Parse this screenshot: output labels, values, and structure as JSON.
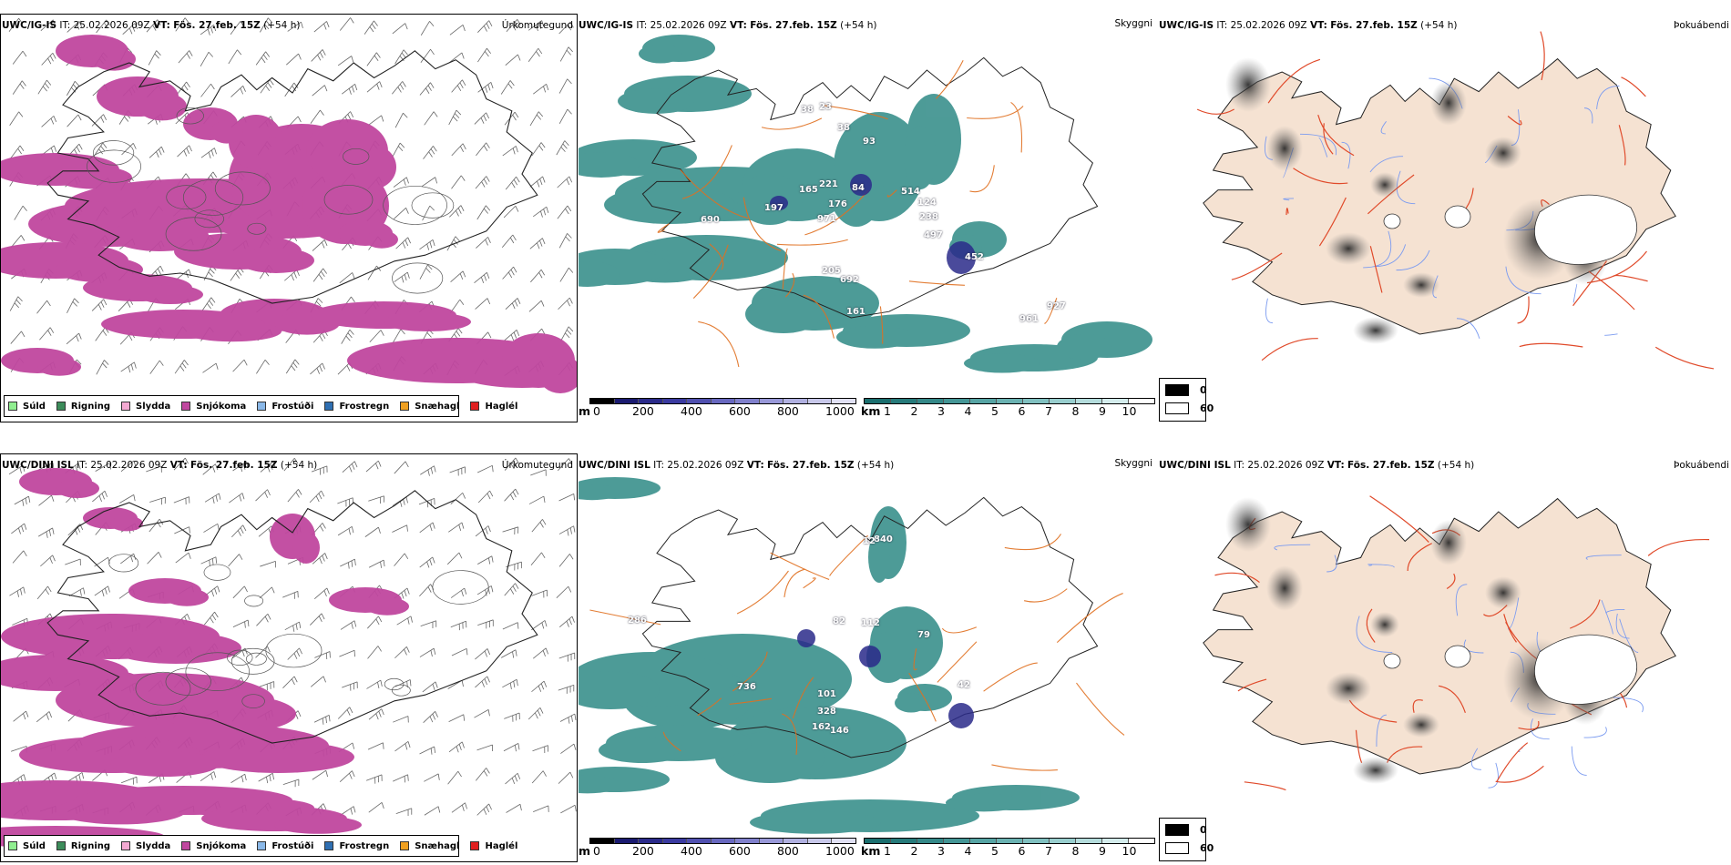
{
  "rows": [
    {
      "model": "UWC/IG-IS",
      "it_label": "IT:",
      "it_value": "25.02.2026 09Z",
      "vt_label": "VT:",
      "vt_value": "Fös. 27.feb. 15Z",
      "lead": "(+54 h)",
      "panel_titles": [
        "Úrkomutegund",
        "Skyggni",
        "Þokuábendi"
      ],
      "peaks": [
        {
          "label": "38"
        },
        {
          "label": "23"
        },
        {
          "label": "38"
        },
        {
          "label": "93"
        },
        {
          "label": "221"
        },
        {
          "label": "165"
        },
        {
          "label": "84"
        },
        {
          "label": "514"
        },
        {
          "label": "176"
        },
        {
          "label": "124"
        },
        {
          "label": "197"
        },
        {
          "label": "971"
        },
        {
          "label": "238"
        },
        {
          "label": "690"
        },
        {
          "label": "497"
        },
        {
          "label": "452"
        },
        {
          "label": "205"
        },
        {
          "label": "692"
        },
        {
          "label": "161"
        },
        {
          "label": "961"
        },
        {
          "label": "927"
        }
      ]
    },
    {
      "model": "UWC/DINI ISL",
      "it_label": "IT:",
      "it_value": "25.02.2026 09Z",
      "vt_label": "VT:",
      "vt_value": "Fös. 27.feb. 15Z",
      "lead": "(+54 h)",
      "panel_titles": [
        "Úrkomutegund",
        "Skyggni",
        "Þokuábendi"
      ],
      "peaks": [
        {
          "label": "840"
        },
        {
          "label": "12"
        },
        {
          "label": "286"
        },
        {
          "label": "112"
        },
        {
          "label": "82"
        },
        {
          "label": "79"
        },
        {
          "label": "42"
        },
        {
          "label": "736"
        },
        {
          "label": "101"
        },
        {
          "label": "328"
        },
        {
          "label": "162"
        },
        {
          "label": "146"
        }
      ]
    }
  ],
  "precip_legend": [
    {
      "label": "Súld",
      "color": "#90ee90"
    },
    {
      "label": "Rigning",
      "color": "#3c8c5a"
    },
    {
      "label": "Slydda",
      "color": "#f4a9d2"
    },
    {
      "label": "Snjókoma",
      "color": "#c0479f"
    },
    {
      "label": "Frostúði",
      "color": "#8ab8e8"
    },
    {
      "label": "Frostregn",
      "color": "#2f6fb2"
    },
    {
      "label": "Snæhagl",
      "color": "#f0a020"
    },
    {
      "label": "Haglél",
      "color": "#e02020"
    }
  ],
  "visibility_scale": {
    "height_unit": "m",
    "height_ticks": [
      "0",
      "200",
      "400",
      "600",
      "800",
      "1000"
    ],
    "height_colors": [
      "#000000",
      "#1a1a70",
      "#2a2a8a",
      "#3a3aa0",
      "#5050b0",
      "#6868bf",
      "#8080cc",
      "#9898d8",
      "#b0b0e0",
      "#c8c8ea",
      "#e0e0f4"
    ],
    "vis_unit": "km",
    "vis_ticks": [
      "1",
      "2",
      "3",
      "4",
      "5",
      "6",
      "7",
      "8",
      "9",
      "10"
    ],
    "vis_colors": [
      "#1a6e6e",
      "#267a7a",
      "#348888",
      "#449696",
      "#56a4a4",
      "#6ab2b2",
      "#80c0c0",
      "#98cece",
      "#b4dcdc",
      "#d4ecec",
      "#ffffff"
    ]
  },
  "fog_legend": [
    {
      "label": "0",
      "color": "#000000"
    },
    {
      "label": "60",
      "color": "#ffffff"
    }
  ],
  "colors": {
    "snow": "#c0479f",
    "visibility": "#2f8a86",
    "roads": "#e07020",
    "land": "#f5e2d2",
    "rivers": "#7b9bf0",
    "fog_roads": "#e04a2a"
  }
}
